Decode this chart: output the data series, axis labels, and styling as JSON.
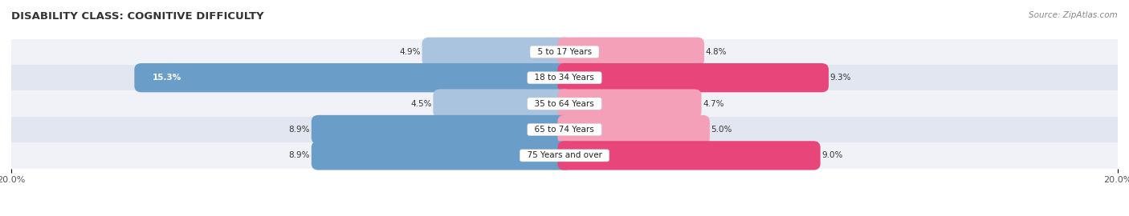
{
  "title": "DISABILITY CLASS: COGNITIVE DIFFICULTY",
  "source_text": "Source: ZipAtlas.com",
  "categories": [
    "5 to 17 Years",
    "18 to 34 Years",
    "35 to 64 Years",
    "65 to 74 Years",
    "75 Years and over"
  ],
  "male_values": [
    4.9,
    15.3,
    4.5,
    8.9,
    8.9
  ],
  "female_values": [
    4.8,
    9.3,
    4.7,
    5.0,
    9.0
  ],
  "male_color_light": "#aac4e0",
  "male_color_strong": "#6a9ec8",
  "female_color_light": "#f4a0b8",
  "female_color_strong": "#e8457a",
  "row_bg_light": "#f0f2f8",
  "row_bg_dark": "#e2e6f0",
  "axis_limit": 20.0,
  "title_fontsize": 9.5,
  "label_fontsize": 7.5,
  "tick_fontsize": 8,
  "legend_fontsize": 8,
  "source_fontsize": 7.5
}
